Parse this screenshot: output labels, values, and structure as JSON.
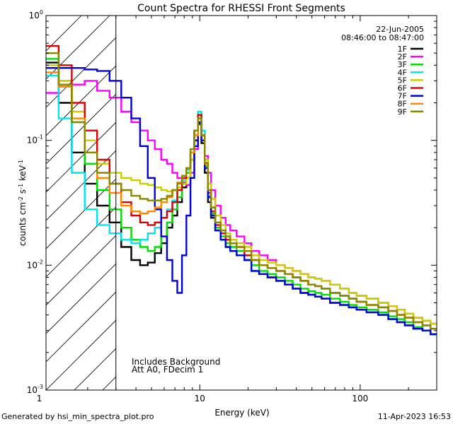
{
  "chart_data": {
    "type": "line",
    "title": "Count Spectra for RHESSI Front Segments",
    "xlabel": "Energy (keV)",
    "ylabel": "counts cm-2 s-1 keV-1",
    "xscale": "log",
    "yscale": "log",
    "xlim": [
      1.1,
      300
    ],
    "ylim": [
      0.001,
      1.0
    ],
    "x_ticks": [
      {
        "value": 1,
        "label": "1"
      },
      {
        "value": 10,
        "label": "10"
      },
      {
        "value": 100,
        "label": "100"
      }
    ],
    "y_ticks": [
      {
        "value": 0.001,
        "base": "10",
        "exp": "-3"
      },
      {
        "value": 0.01,
        "base": "10",
        "exp": "-2"
      },
      {
        "value": 0.1,
        "base": "10",
        "exp": "-1"
      },
      {
        "value": 1,
        "base": "10",
        "exp": "0"
      }
    ],
    "hatched_region_upper_kev": 3,
    "date": "22-Jun-2005",
    "time_range": "08:46:00 to 08:47:00",
    "annotations": [
      "Includes Background",
      "Att A0, FDecim 1"
    ],
    "energy_kev": [
      1.2,
      1.45,
      1.75,
      2.1,
      2.5,
      3,
      3.5,
      4,
      4.5,
      5,
      5.5,
      6,
      6.5,
      7,
      7.5,
      8,
      8.5,
      9,
      9.5,
      10,
      10.5,
      11,
      11.5,
      12,
      13,
      14,
      15,
      16,
      18,
      20,
      22,
      25,
      28,
      32,
      36,
      40,
      45,
      50,
      55,
      60,
      70,
      80,
      90,
      100,
      120,
      140,
      160,
      180,
      200,
      230,
      260,
      290
    ],
    "series": [
      {
        "name": "1F",
        "color": "#000000",
        "values": [
          0.42,
          0.2,
          0.08,
          0.045,
          0.03,
          0.022,
          0.014,
          0.011,
          0.01,
          0.0105,
          0.0125,
          0.015,
          0.02,
          0.025,
          0.032,
          0.042,
          0.05,
          0.07,
          0.1,
          0.135,
          0.095,
          0.055,
          0.032,
          0.024,
          0.019,
          0.016,
          0.014,
          0.013,
          0.012,
          0.011,
          0.009,
          0.0085,
          0.008,
          0.0075,
          0.007,
          0.0065,
          0.006,
          0.0058,
          0.0056,
          0.0054,
          0.005,
          0.0048,
          0.0046,
          0.0044,
          0.0042,
          0.004,
          0.0037,
          0.0035,
          0.0033,
          0.0031,
          0.003,
          0.0028
        ]
      },
      {
        "name": "2F",
        "color": "#ff00ff",
        "values": [
          0.24,
          0.27,
          0.28,
          0.3,
          0.25,
          0.22,
          0.17,
          0.14,
          0.12,
          0.1,
          0.085,
          0.07,
          0.065,
          0.055,
          0.05,
          0.046,
          0.044,
          0.055,
          0.085,
          0.14,
          0.1,
          0.075,
          0.055,
          0.04,
          0.03,
          0.024,
          0.021,
          0.019,
          0.017,
          0.015,
          0.013,
          0.012,
          0.011,
          0.01,
          0.0095,
          0.009,
          0.0085,
          0.008,
          0.0078,
          0.0075,
          0.007,
          0.0065,
          0.006,
          0.0057,
          0.0054,
          0.005,
          0.0047,
          0.0044,
          0.0041,
          0.0038,
          0.0036,
          0.0034
        ]
      },
      {
        "name": "3F",
        "color": "#00dd00",
        "values": [
          0.45,
          0.3,
          0.14,
          0.065,
          0.04,
          0.028,
          0.02,
          0.016,
          0.014,
          0.013,
          0.014,
          0.017,
          0.022,
          0.028,
          0.035,
          0.045,
          0.055,
          0.08,
          0.12,
          0.16,
          0.11,
          0.062,
          0.036,
          0.026,
          0.02,
          0.017,
          0.015,
          0.014,
          0.013,
          0.012,
          0.01,
          0.009,
          0.0085,
          0.008,
          0.0075,
          0.007,
          0.0065,
          0.0062,
          0.006,
          0.0058,
          0.0054,
          0.0051,
          0.0048,
          0.0046,
          0.0044,
          0.0042,
          0.0039,
          0.0037,
          0.0035,
          0.0032,
          0.003,
          0.0028
        ]
      },
      {
        "name": "4F",
        "color": "#00e5ee",
        "values": [
          0.33,
          0.15,
          0.055,
          0.028,
          0.021,
          0.018,
          0.016,
          0.015,
          0.016,
          0.018,
          0.02,
          0.024,
          0.028,
          0.033,
          0.04,
          0.048,
          0.058,
          0.08,
          0.12,
          0.17,
          0.12,
          0.065,
          0.035,
          0.025,
          0.019,
          0.016,
          0.014,
          0.013,
          0.012,
          0.011,
          0.009,
          0.0085,
          0.008,
          0.0075,
          0.007,
          0.0065,
          0.006,
          0.0058,
          0.0056,
          0.0054,
          0.005,
          0.0048,
          0.0046,
          0.0044,
          0.0042,
          0.004,
          0.0037,
          0.0035,
          0.0033,
          0.0031,
          0.003,
          0.0028
        ]
      },
      {
        "name": "5F",
        "color": "#cccc00",
        "values": [
          0.4,
          0.3,
          0.17,
          0.1,
          0.065,
          0.055,
          0.05,
          0.048,
          0.045,
          0.044,
          0.042,
          0.04,
          0.039,
          0.04,
          0.042,
          0.045,
          0.05,
          0.07,
          0.11,
          0.15,
          0.11,
          0.07,
          0.045,
          0.034,
          0.025,
          0.021,
          0.018,
          0.016,
          0.015,
          0.014,
          0.012,
          0.011,
          0.0105,
          0.01,
          0.0095,
          0.009,
          0.0085,
          0.008,
          0.0078,
          0.0075,
          0.007,
          0.0065,
          0.006,
          0.0057,
          0.0054,
          0.005,
          0.0047,
          0.0044,
          0.0041,
          0.0038,
          0.0036,
          0.0034
        ]
      },
      {
        "name": "6F",
        "color": "#dd0000",
        "values": [
          0.57,
          0.4,
          0.2,
          0.12,
          0.07,
          0.045,
          0.032,
          0.025,
          0.022,
          0.021,
          0.022,
          0.024,
          0.027,
          0.032,
          0.04,
          0.05,
          0.06,
          0.08,
          0.12,
          0.16,
          0.11,
          0.065,
          0.038,
          0.027,
          0.021,
          0.018,
          0.016,
          0.015,
          0.014,
          0.012,
          0.011,
          0.01,
          0.0095,
          0.009,
          0.0085,
          0.008,
          0.0075,
          0.007,
          0.0068,
          0.0065,
          0.006,
          0.0057,
          0.0054,
          0.0051,
          0.0048,
          0.0046,
          0.0043,
          0.004,
          0.0038,
          0.0035,
          0.0033,
          0.0031
        ]
      },
      {
        "name": "7F",
        "color": "#0000dd",
        "values": [
          0.38,
          0.38,
          0.38,
          0.37,
          0.36,
          0.3,
          0.22,
          0.15,
          0.09,
          0.05,
          0.028,
          0.017,
          0.011,
          0.0075,
          0.006,
          0.012,
          0.025,
          0.05,
          0.09,
          0.14,
          0.1,
          0.06,
          0.035,
          0.025,
          0.019,
          0.016,
          0.014,
          0.013,
          0.012,
          0.011,
          0.009,
          0.0085,
          0.008,
          0.0075,
          0.007,
          0.0065,
          0.006,
          0.0058,
          0.0056,
          0.0054,
          0.005,
          0.0048,
          0.0046,
          0.0044,
          0.0042,
          0.004,
          0.0037,
          0.0035,
          0.0033,
          0.0031,
          0.003,
          0.0028
        ]
      },
      {
        "name": "8F",
        "color": "#ff8800",
        "values": [
          0.35,
          0.27,
          0.15,
          0.08,
          0.05,
          0.038,
          0.03,
          0.027,
          0.026,
          0.027,
          0.029,
          0.032,
          0.035,
          0.04,
          0.046,
          0.052,
          0.06,
          0.08,
          0.11,
          0.15,
          0.11,
          0.065,
          0.04,
          0.029,
          0.022,
          0.019,
          0.017,
          0.015,
          0.014,
          0.013,
          0.011,
          0.01,
          0.0095,
          0.009,
          0.0085,
          0.008,
          0.0075,
          0.007,
          0.0068,
          0.0065,
          0.006,
          0.0057,
          0.0054,
          0.0051,
          0.0048,
          0.0046,
          0.0043,
          0.004,
          0.0038,
          0.0035,
          0.0033,
          0.0031
        ]
      },
      {
        "name": "9F",
        "color": "#888800",
        "values": [
          0.5,
          0.28,
          0.14,
          0.08,
          0.055,
          0.045,
          0.04,
          0.036,
          0.034,
          0.033,
          0.033,
          0.034,
          0.036,
          0.04,
          0.045,
          0.052,
          0.06,
          0.085,
          0.12,
          0.15,
          0.11,
          0.066,
          0.04,
          0.029,
          0.022,
          0.019,
          0.017,
          0.015,
          0.014,
          0.013,
          0.011,
          0.01,
          0.0095,
          0.009,
          0.0085,
          0.008,
          0.0075,
          0.007,
          0.0068,
          0.0065,
          0.006,
          0.0057,
          0.0054,
          0.0051,
          0.0048,
          0.0046,
          0.0043,
          0.004,
          0.0038,
          0.0035,
          0.0033,
          0.0031
        ]
      }
    ]
  },
  "footer": {
    "left": "Generated by hsi_min_spectra_plot.pro",
    "right": "11-Apr-2023 16:53"
  }
}
